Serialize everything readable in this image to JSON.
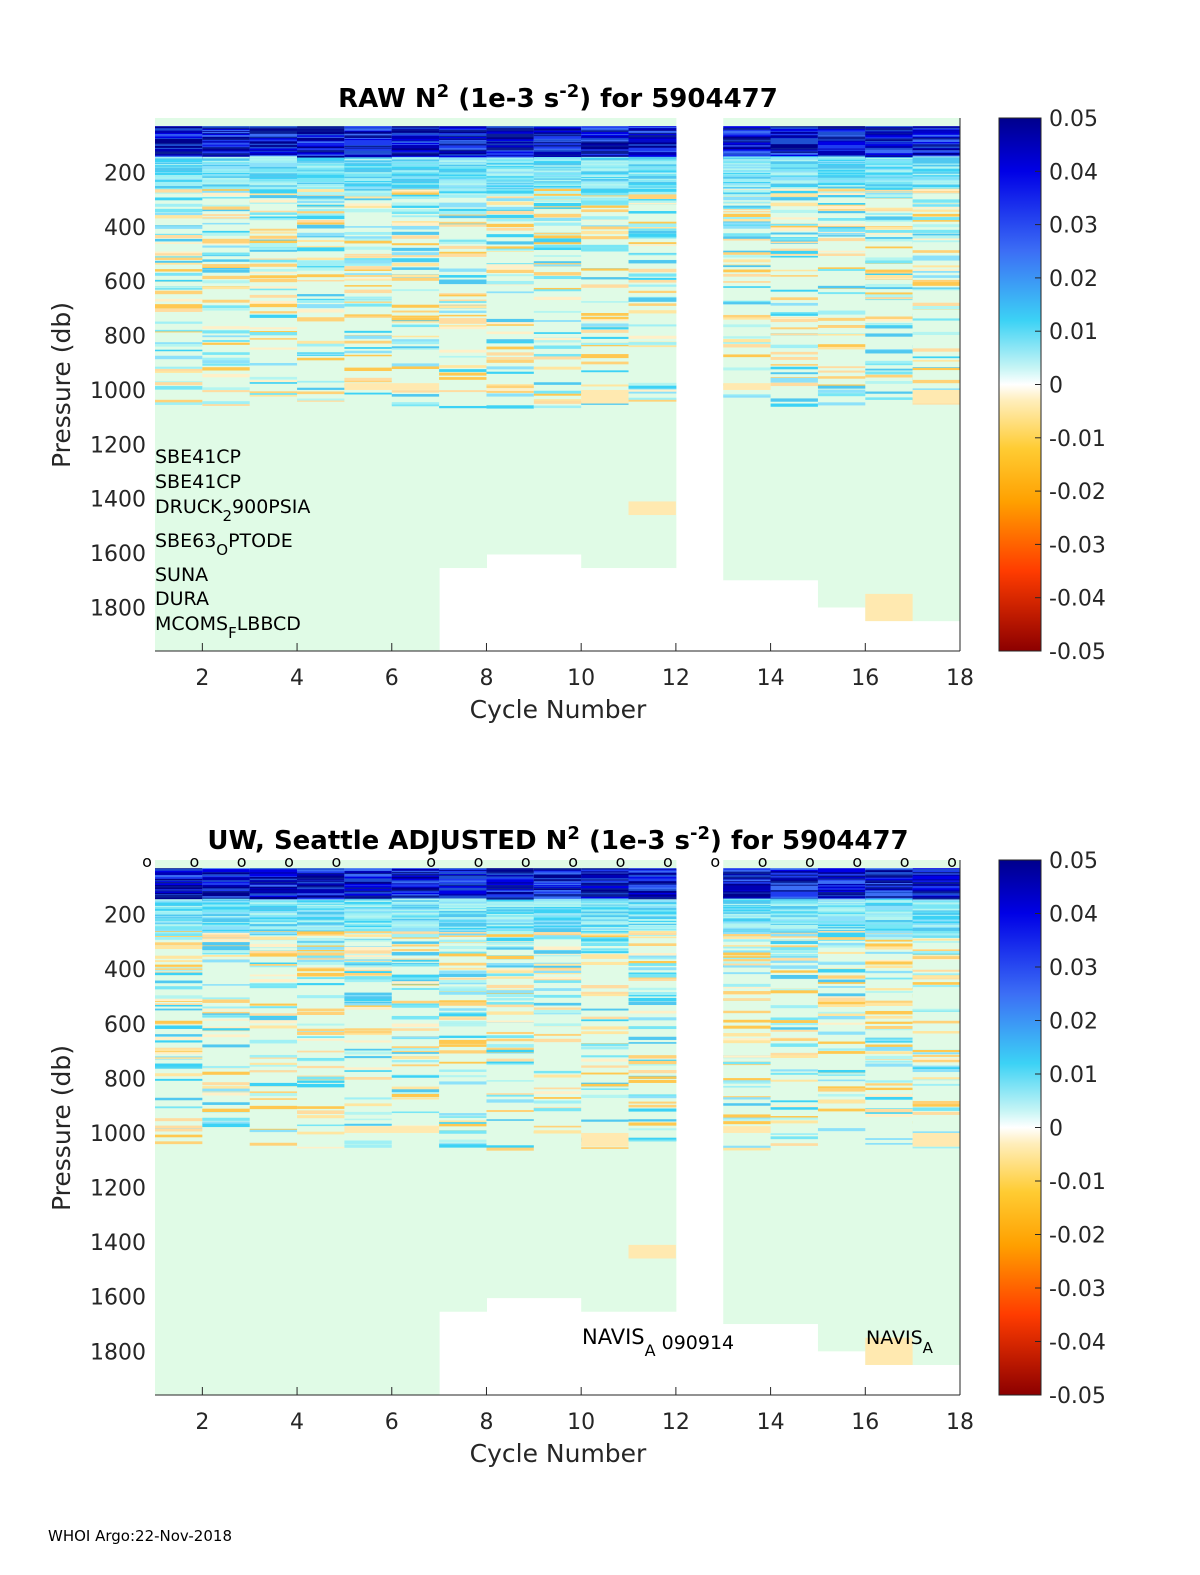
{
  "chart_data": [
    {
      "type": "heatmap",
      "title_parts": [
        "RAW N",
        "2",
        " (1e-3 s",
        "-2",
        ") for 5904477"
      ],
      "xlabel": "Cycle Number",
      "ylabel": "Pressure (db)",
      "xlim": [
        1,
        18
      ],
      "ylim": [
        1960,
        0
      ],
      "x_ticks": [
        "2",
        "4",
        "6",
        "8",
        "10",
        "12",
        "14",
        "16",
        "18"
      ],
      "y_ticks": [
        "200",
        "400",
        "600",
        "800",
        "1000",
        "1200",
        "1400",
        "1600",
        "1800"
      ],
      "colorbar": {
        "min": -0.05,
        "max": 0.05,
        "ticks": [
          "0.05",
          "0.04",
          "0.03",
          "0.02",
          "0.01",
          "0",
          "-0.01",
          "-0.02",
          "-0.03",
          "-0.04",
          "-0.05"
        ]
      },
      "missing_cycles": [
        12
      ],
      "profile_max_pressure": [
        1960,
        1960,
        1960,
        1960,
        1960,
        1960,
        1655,
        1605,
        1605,
        1655,
        1655,
        0,
        1700,
        1700,
        1800,
        1850,
        1850,
        1850
      ],
      "sensors": [
        [
          "SBE41CP"
        ],
        [
          "SBE41CP"
        ],
        [
          "DRUCK",
          "2",
          "900PSIA"
        ],
        [
          "SBE63",
          "O",
          "PTODE"
        ],
        [
          "SUNA"
        ],
        [
          "DURA"
        ],
        [
          "MCOMS",
          "F",
          "LBBCD"
        ]
      ]
    },
    {
      "type": "heatmap",
      "title_parts": [
        "UW, Seattle  ADJUSTED N",
        "2",
        " (1e-3 s",
        "-2",
        ") for 5904477"
      ],
      "xlabel": "Cycle Number",
      "ylabel": "Pressure (db)",
      "xlim": [
        1,
        18
      ],
      "ylim": [
        1960,
        0
      ],
      "x_ticks": [
        "2",
        "4",
        "6",
        "8",
        "10",
        "12",
        "14",
        "16",
        "18"
      ],
      "y_ticks": [
        "200",
        "400",
        "600",
        "800",
        "1000",
        "1200",
        "1400",
        "1600",
        "1800"
      ],
      "colorbar": {
        "min": -0.05,
        "max": 0.05,
        "ticks": [
          "0.05",
          "0.04",
          "0.03",
          "0.02",
          "0.01",
          "0",
          "-0.01",
          "-0.02",
          "-0.03",
          "-0.04",
          "-0.05"
        ]
      },
      "missing_cycles": [
        12
      ],
      "profile_max_pressure": [
        1960,
        1960,
        1960,
        1960,
        1960,
        1960,
        1655,
        1605,
        1605,
        1655,
        1655,
        0,
        1700,
        1700,
        1800,
        1850,
        1850,
        1850
      ],
      "qc_marker_cycles": [
        1,
        2,
        3,
        4,
        5,
        7,
        8,
        9,
        10,
        11,
        12,
        13,
        14,
        15,
        16,
        17,
        18
      ],
      "qc_marker_symbol": "o",
      "float_type_labels": [
        {
          "parts": [
            "NAVIS",
            "A",
            " 090914"
          ],
          "cycle": 10
        },
        {
          "parts": [
            "NAVIS",
            "A"
          ],
          "cycle": 16
        }
      ]
    }
  ],
  "footer": "WHOI Argo:22-Nov-2018"
}
